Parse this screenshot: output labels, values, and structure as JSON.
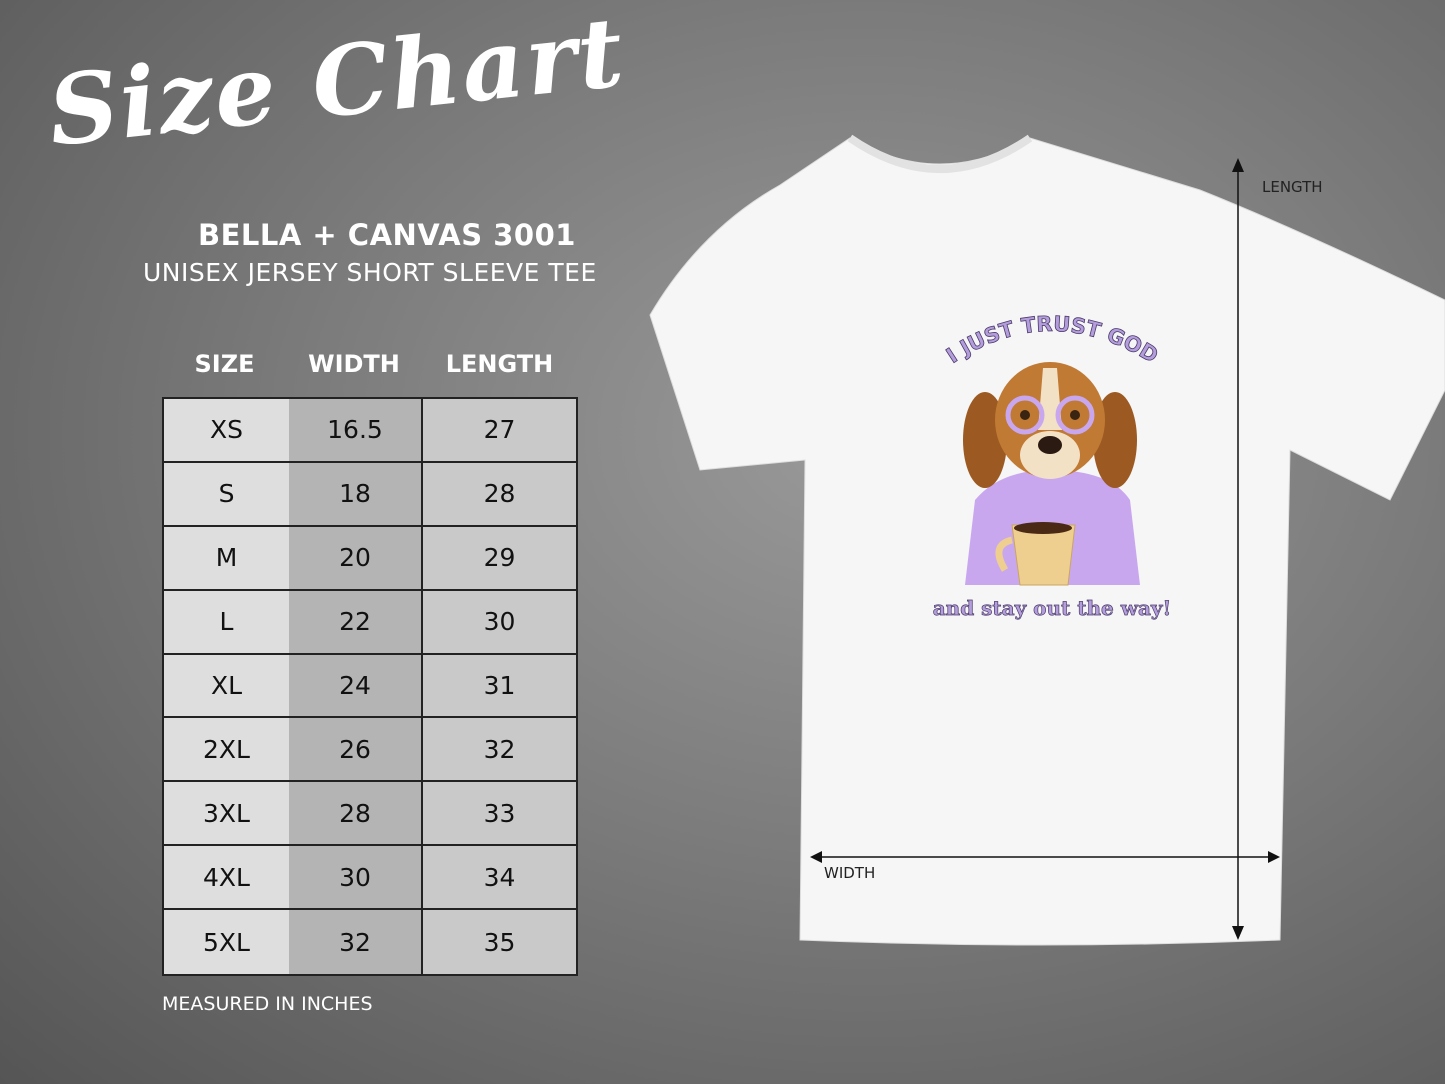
{
  "title": "Size Chart",
  "brand": "BELLA + CANVAS 3001",
  "subtitle": "UNISEX JERSEY SHORT SLEEVE TEE",
  "table": {
    "headers": [
      "SIZE",
      "WIDTH",
      "LENGTH"
    ],
    "rows": [
      [
        "XS",
        "16.5",
        "27"
      ],
      [
        "S",
        "18",
        "28"
      ],
      [
        "M",
        "20",
        "29"
      ],
      [
        "L",
        "22",
        "30"
      ],
      [
        "XL",
        "24",
        "31"
      ],
      [
        "2XL",
        "26",
        "32"
      ],
      [
        "3XL",
        "28",
        "33"
      ],
      [
        "4XL",
        "30",
        "34"
      ],
      [
        "5XL",
        "32",
        "35"
      ]
    ]
  },
  "note": "MEASURED IN INCHES",
  "shirt": {
    "length_label": "LENGTH",
    "width_label": "WIDTH",
    "design_top": "I JUST TRUST GOD",
    "design_bottom": "and stay out the way!",
    "accent_color": "#9a7fc9"
  }
}
